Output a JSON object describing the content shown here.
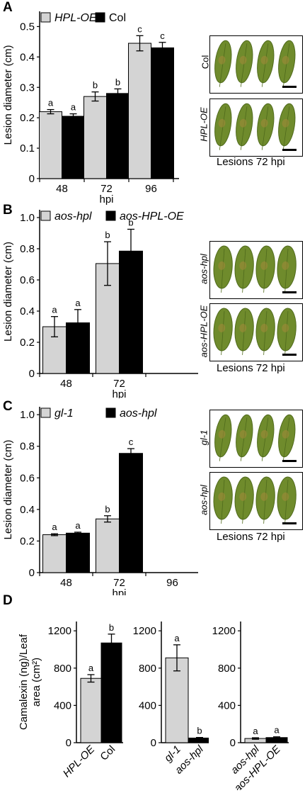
{
  "panels": {
    "A": "A",
    "B": "B",
    "C": "C",
    "D": "D"
  },
  "photos": {
    "caption": "Lesions 72 hpi",
    "A_top": "Col",
    "A_bottom": "HPL-OE",
    "B_top": "aos-hpl",
    "B_bottom": "aos-HPL-OE",
    "C_top": "gl-1",
    "C_bottom": "aos-hpl"
  },
  "colors": {
    "gray": "#d4d4d4",
    "black": "#000000",
    "leaf": "#6f8b2c",
    "leaf_dark": "#4f6a1c"
  },
  "chart_data": [
    {
      "id": "A",
      "type": "bar",
      "ylabel": "Lesion diameter (cm)",
      "xlabel": "hpi",
      "categories": [
        "48",
        "72",
        "96"
      ],
      "ylim": [
        0,
        0.55
      ],
      "yticks": [
        "0",
        "0.1",
        "0.2",
        "0.3",
        "0.4",
        "0.5"
      ],
      "legend": [
        "HPL-OE",
        "Col"
      ],
      "legend_italic": [
        true,
        false
      ],
      "series": [
        {
          "name": "HPL-OE",
          "color": "gray",
          "values": [
            0.22,
            0.27,
            0.445
          ],
          "errors": [
            0.007,
            0.015,
            0.025
          ],
          "letters": [
            "a",
            "b",
            "c"
          ]
        },
        {
          "name": "Col",
          "color": "black",
          "values": [
            0.205,
            0.28,
            0.43
          ],
          "errors": [
            0.008,
            0.015,
            0.018
          ],
          "letters": [
            "a",
            "b",
            "c"
          ]
        }
      ]
    },
    {
      "id": "B",
      "type": "bar",
      "ylabel": "Lesion diameter (cm)",
      "xlabel": "hpi",
      "categories": [
        "48",
        "72",
        ""
      ],
      "ylim": [
        0,
        1.05
      ],
      "yticks": [
        "0",
        "0.2",
        "0.4",
        "0.6",
        "0.8",
        "1.0"
      ],
      "legend": [
        "aos-hpl",
        "aos-HPL-OE"
      ],
      "legend_italic": [
        true,
        true
      ],
      "series": [
        {
          "name": "aos-hpl",
          "color": "gray",
          "values": [
            0.3,
            0.705,
            null
          ],
          "errors": [
            0.065,
            0.14,
            null
          ],
          "letters": [
            "a",
            "b",
            ""
          ]
        },
        {
          "name": "aos-HPL-OE",
          "color": "black",
          "values": [
            0.325,
            0.785,
            null
          ],
          "errors": [
            0.085,
            0.14,
            null
          ],
          "letters": [
            "a",
            "b",
            ""
          ]
        }
      ]
    },
    {
      "id": "C",
      "type": "bar",
      "ylabel": "Lesion diameter (cm)",
      "xlabel": "hpi",
      "categories": [
        "48",
        "72",
        "96"
      ],
      "ylim": [
        0,
        1.05
      ],
      "yticks": [
        "0",
        "0.2",
        "0.4",
        "0.6",
        "0.8",
        "1.0"
      ],
      "legend": [
        "gl-1",
        "aos-hpl"
      ],
      "legend_italic": [
        true,
        true
      ],
      "series": [
        {
          "name": "gl-1",
          "color": "gray",
          "values": [
            0.24,
            0.34,
            null
          ],
          "errors": [
            0.006,
            0.02,
            null
          ],
          "letters": [
            "a",
            "b",
            ""
          ]
        },
        {
          "name": "aos-hpl",
          "color": "black",
          "values": [
            0.25,
            0.755,
            null
          ],
          "errors": [
            0.006,
            0.03,
            null
          ],
          "letters": [
            "a",
            "c",
            ""
          ]
        }
      ]
    },
    {
      "id": "D1",
      "type": "bar",
      "ylabel": "Camalexin (ng)/Leaf area (cm²)",
      "ylim": [
        0,
        1300
      ],
      "yticks": [
        "0",
        "400",
        "800",
        "1200"
      ],
      "categories": [
        "HPL-OE",
        "Col"
      ],
      "category_italic": [
        true,
        false
      ],
      "values": [
        690,
        1070
      ],
      "errors": [
        40,
        95
      ],
      "letters": [
        "a",
        "b"
      ],
      "colors": [
        "gray",
        "black"
      ]
    },
    {
      "id": "D2",
      "type": "bar",
      "ylim": [
        0,
        1300
      ],
      "yticks": [
        "0",
        "400",
        "800",
        "1200"
      ],
      "categories": [
        "gl-1",
        "aos-hpl"
      ],
      "category_italic": [
        true,
        true
      ],
      "values": [
        910,
        50
      ],
      "errors": [
        140,
        6
      ],
      "letters": [
        "a",
        "b"
      ],
      "colors": [
        "gray",
        "black"
      ]
    },
    {
      "id": "D3",
      "type": "bar",
      "ylim": [
        0,
        1300
      ],
      "yticks": [
        "0",
        "400",
        "800",
        "1200"
      ],
      "categories": [
        "aos-hpl",
        "aos-HPL-OE"
      ],
      "category_italic": [
        true,
        true
      ],
      "values": [
        45,
        55
      ],
      "errors": [
        8,
        8
      ],
      "letters": [
        "a",
        "a"
      ],
      "colors": [
        "gray",
        "black"
      ]
    }
  ]
}
